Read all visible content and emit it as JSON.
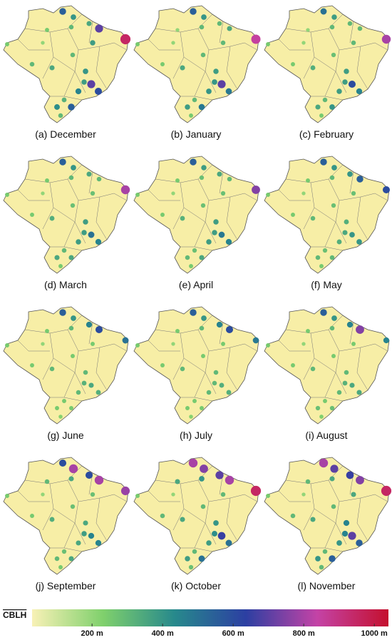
{
  "panels": [
    {
      "caption": "(a) December",
      "values": [
        550,
        400,
        350,
        700,
        950,
        250,
        300,
        250,
        200,
        380,
        300,
        350,
        300,
        400,
        380,
        700,
        600,
        450,
        320,
        420,
        550,
        300
      ]
    },
    {
      "caption": "(b) January",
      "values": [
        550,
        400,
        300,
        350,
        850,
        200,
        300,
        250,
        200,
        300,
        250,
        350,
        300,
        380,
        400,
        700,
        480,
        400,
        300,
        380,
        480,
        250
      ]
    },
    {
      "caption": "(c) February",
      "values": [
        500,
        380,
        300,
        300,
        800,
        200,
        300,
        250,
        200,
        300,
        250,
        330,
        280,
        380,
        380,
        600,
        450,
        380,
        300,
        350,
        400,
        250
      ]
    },
    {
      "caption": "(d) March",
      "values": [
        550,
        400,
        350,
        300,
        800,
        250,
        300,
        250,
        200,
        280,
        250,
        330,
        280,
        380,
        380,
        500,
        450,
        380,
        300,
        350,
        350,
        250
      ]
    },
    {
      "caption": "(e) April",
      "values": [
        550,
        380,
        350,
        300,
        750,
        250,
        280,
        250,
        200,
        280,
        250,
        320,
        280,
        380,
        380,
        480,
        450,
        380,
        280,
        300,
        350,
        250
      ]
    },
    {
      "caption": "(f) May",
      "values": [
        550,
        400,
        400,
        550,
        600,
        250,
        300,
        250,
        200,
        280,
        250,
        300,
        280,
        330,
        350,
        400,
        400,
        330,
        280,
        300,
        300,
        250
      ]
    },
    {
      "caption": "(g) June",
      "values": [
        550,
        400,
        450,
        600,
        500,
        250,
        300,
        250,
        200,
        250,
        250,
        300,
        250,
        300,
        320,
        350,
        330,
        300,
        250,
        250,
        250,
        220
      ]
    },
    {
      "caption": "(h) July",
      "values": [
        550,
        400,
        450,
        600,
        480,
        250,
        300,
        250,
        200,
        250,
        250,
        300,
        250,
        300,
        300,
        330,
        330,
        300,
        250,
        250,
        250,
        220
      ]
    },
    {
      "caption": "(i) August",
      "values": [
        550,
        400,
        450,
        750,
        450,
        250,
        300,
        250,
        200,
        250,
        250,
        300,
        250,
        300,
        320,
        350,
        350,
        300,
        250,
        280,
        280,
        230
      ]
    },
    {
      "caption": "(j) September",
      "values": [
        600,
        800,
        600,
        800,
        780,
        300,
        350,
        250,
        200,
        280,
        250,
        330,
        280,
        350,
        380,
        450,
        450,
        350,
        280,
        300,
        350,
        250
      ]
    },
    {
      "caption": "(k) October",
      "values": [
        800,
        750,
        700,
        800,
        950,
        350,
        400,
        250,
        200,
        300,
        300,
        350,
        300,
        400,
        420,
        650,
        500,
        380,
        300,
        380,
        500,
        280
      ]
    },
    {
      "caption": "(l) November",
      "values": [
        800,
        700,
        650,
        750,
        950,
        300,
        350,
        250,
        200,
        350,
        300,
        350,
        300,
        450,
        450,
        700,
        550,
        400,
        300,
        400,
        550,
        300
      ]
    }
  ],
  "colorbar": {
    "label": "CBLH",
    "clim": [
      30,
      1040
    ],
    "colormap": [
      "#f8f1b6",
      "#7fd06c",
      "#27898c",
      "#2c3fa2",
      "#c443a6",
      "#c4102e"
    ],
    "ticks": [
      {
        "value": 200,
        "label": "200 m"
      },
      {
        "value": 400,
        "label": "400 m"
      },
      {
        "value": 600,
        "label": "600 m"
      },
      {
        "value": 800,
        "label": "800 m"
      },
      {
        "value": 1000,
        "label": "1000 m"
      }
    ]
  }
}
